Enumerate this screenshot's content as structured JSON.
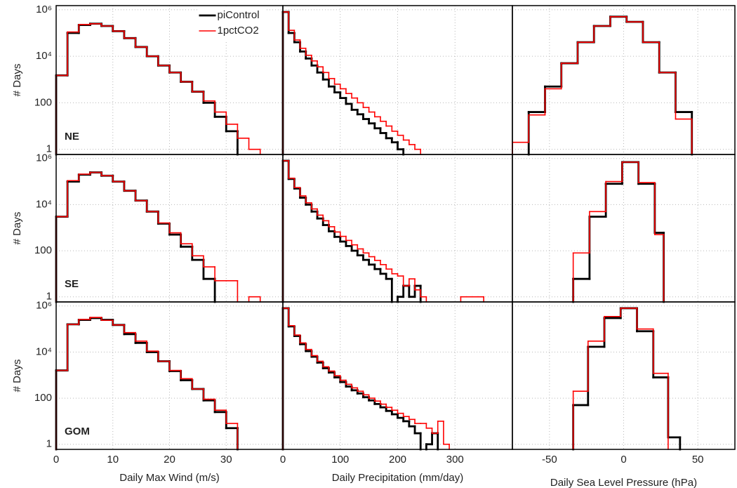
{
  "chart_data": [
    {
      "type": "histogram",
      "yscale": "log",
      "grid": true,
      "label": "NE",
      "ylabel": "# Days",
      "legend": "upper center",
      "xlim": [
        0,
        40
      ],
      "xticks": [
        0,
        10,
        20,
        30
      ],
      "ylim": [
        0.6,
        1500000
      ],
      "yticks": [
        1,
        100,
        {
          "value": 10000,
          "label": "10⁴"
        },
        {
          "value": 1000000,
          "label": "10⁶"
        }
      ],
      "series": [
        {
          "name": "piControl",
          "color": "#000000",
          "bins": [
            0,
            2,
            4,
            6,
            8,
            10,
            12,
            14,
            16,
            18,
            20,
            22,
            24,
            26,
            28,
            30,
            32
          ],
          "values": [
            1500,
            100000,
            220000,
            250000,
            200000,
            120000,
            60000,
            25000,
            10000,
            4000,
            2000,
            800,
            300,
            100,
            25,
            6
          ]
        },
        {
          "name": "1pctCO2",
          "color": "#ff0000",
          "bins": [
            0,
            2,
            4,
            6,
            8,
            10,
            12,
            14,
            16,
            18,
            20,
            22,
            24,
            26,
            28,
            30,
            32,
            34,
            36
          ],
          "values": [
            1500,
            110000,
            230000,
            250000,
            200000,
            120000,
            60000,
            25000,
            10000,
            4000,
            2000,
            800,
            300,
            120,
            40,
            12,
            3,
            1
          ]
        }
      ]
    },
    {
      "type": "histogram",
      "yscale": "log",
      "grid": true,
      "xlim": [
        0,
        400
      ],
      "xticks": [
        0,
        100,
        200,
        300
      ],
      "ylim": [
        0.6,
        1500000
      ],
      "yticks": [
        1,
        100,
        10000,
        1000000
      ],
      "series": [
        {
          "color": "#000000",
          "bins": [
            0,
            10,
            20,
            30,
            40,
            50,
            60,
            70,
            80,
            90,
            100,
            110,
            120,
            130,
            140,
            150,
            160,
            170,
            180,
            190,
            200,
            210
          ],
          "values": [
            800000,
            100000,
            40000,
            16000,
            8000,
            4000,
            2000,
            1000,
            500,
            280,
            160,
            90,
            50,
            32,
            20,
            13,
            8,
            5,
            3,
            2,
            1
          ]
        },
        {
          "color": "#ff0000",
          "bins": [
            0,
            10,
            20,
            30,
            40,
            50,
            60,
            70,
            80,
            90,
            100,
            110,
            120,
            130,
            140,
            150,
            160,
            170,
            180,
            190,
            200,
            210,
            220,
            230,
            240
          ],
          "values": [
            800000,
            130000,
            50000,
            22000,
            11000,
            6300,
            3500,
            2000,
            1100,
            630,
            400,
            250,
            160,
            100,
            63,
            40,
            25,
            16,
            10,
            6,
            4,
            2.5,
            1.6,
            1
          ]
        }
      ]
    },
    {
      "type": "histogram",
      "yscale": "log",
      "grid": true,
      "xlim": [
        -75,
        75
      ],
      "xticks": [
        -50,
        0,
        50
      ],
      "ylim": [
        0.6,
        1500000
      ],
      "yticks": [
        1,
        100,
        10000,
        1000000
      ],
      "series": [
        {
          "color": "#000000",
          "bins": [
            -64,
            -53,
            -42,
            -31,
            -20,
            -9,
            2,
            13,
            24,
            35,
            46
          ],
          "values": [
            40,
            500,
            5000,
            40000,
            200000,
            500000,
            300000,
            40000,
            2000,
            40
          ]
        },
        {
          "color": "#ff0000",
          "bins": [
            -75,
            -64,
            -53,
            -42,
            -31,
            -20,
            -9,
            2,
            13,
            24,
            35,
            46
          ],
          "values": [
            2,
            30,
            400,
            5000,
            40000,
            200000,
            500000,
            300000,
            40000,
            2000,
            20
          ]
        }
      ]
    },
    {
      "type": "histogram",
      "yscale": "log",
      "grid": true,
      "label": "SE",
      "ylabel": "# Days",
      "xlim": [
        0,
        40
      ],
      "xticks": [
        0,
        10,
        20,
        30
      ],
      "ylim": [
        0.6,
        1500000
      ],
      "yticks": [
        1,
        100,
        {
          "value": 10000,
          "label": "10⁴"
        },
        {
          "value": 1000000,
          "label": "10⁶"
        }
      ],
      "series": [
        {
          "color": "#000000",
          "bins": [
            0,
            2,
            4,
            6,
            8,
            10,
            12,
            14,
            16,
            18,
            20,
            22,
            24,
            26,
            28
          ],
          "values": [
            3000,
            100000,
            200000,
            250000,
            180000,
            100000,
            40000,
            15000,
            5000,
            1500,
            500,
            150,
            40,
            6
          ]
        },
        {
          "color": "#ff0000",
          "bins": [
            0,
            2,
            4,
            6,
            8,
            10,
            12,
            14,
            16,
            18,
            20,
            22,
            24,
            26,
            28,
            30,
            32,
            34,
            36
          ],
          "values": [
            3000,
            110000,
            210000,
            250000,
            180000,
            100000,
            40000,
            15000,
            5000,
            1600,
            600,
            200,
            60,
            20,
            5,
            5,
            null,
            1
          ]
        }
      ]
    },
    {
      "type": "histogram",
      "yscale": "log",
      "grid": true,
      "xlim": [
        0,
        400
      ],
      "xticks": [
        0,
        100,
        200,
        300
      ],
      "ylim": [
        0.6,
        1500000
      ],
      "yticks": [
        1,
        100,
        10000,
        1000000
      ],
      "series": [
        {
          "color": "#000000",
          "bins": [
            0,
            10,
            20,
            30,
            40,
            50,
            60,
            70,
            80,
            90,
            100,
            110,
            120,
            130,
            140,
            150,
            160,
            170,
            180,
            190,
            200,
            210,
            220,
            230,
            240
          ],
          "values": [
            800000,
            130000,
            50000,
            20000,
            10000,
            5000,
            2500,
            1300,
            700,
            400,
            250,
            160,
            100,
            63,
            40,
            25,
            16,
            10,
            6,
            null,
            1,
            3,
            1,
            3
          ]
        },
        {
          "color": "#ff0000",
          "bins": [
            0,
            10,
            20,
            30,
            40,
            50,
            60,
            70,
            80,
            90,
            100,
            110,
            120,
            130,
            140,
            150,
            160,
            170,
            180,
            190,
            200,
            210,
            220,
            230,
            240,
            250,
            260,
            270,
            280,
            290,
            300,
            310,
            320,
            330,
            340,
            350
          ],
          "values": [
            800000,
            140000,
            55000,
            24000,
            12000,
            6500,
            3500,
            2000,
            1100,
            650,
            420,
            280,
            180,
            120,
            80,
            55,
            38,
            25,
            16,
            10,
            8,
            3,
            6,
            2,
            1,
            null,
            null,
            null,
            null,
            null,
            null,
            1,
            1,
            1,
            1
          ]
        }
      ]
    },
    {
      "type": "histogram",
      "yscale": "log",
      "grid": true,
      "xlim": [
        -75,
        75
      ],
      "xticks": [
        -50,
        0,
        50
      ],
      "ylim": [
        0.6,
        1500000
      ],
      "yticks": [
        1,
        100,
        10000,
        1000000
      ],
      "series": [
        {
          "color": "#000000",
          "bins": [
            -34,
            -23,
            -12,
            -1,
            10,
            21,
            27
          ],
          "values": [
            6,
            3000,
            80000,
            700000,
            80000,
            600
          ]
        },
        {
          "color": "#ff0000",
          "bins": [
            -34,
            -23,
            -12,
            -1,
            10,
            21,
            27
          ],
          "values": [
            80,
            5000,
            100000,
            700000,
            90000,
            500
          ]
        }
      ]
    },
    {
      "type": "histogram",
      "yscale": "log",
      "grid": true,
      "label": "GOM",
      "ylabel": "# Days",
      "xlabel": "Daily Max Wind (m/s)",
      "xlim": [
        0,
        40
      ],
      "xticks": [
        0,
        10,
        20,
        30
      ],
      "ylim": [
        0.6,
        1500000
      ],
      "yticks": [
        1,
        100,
        {
          "value": 10000,
          "label": "10⁴"
        },
        {
          "value": 1000000,
          "label": "10⁶"
        }
      ],
      "series": [
        {
          "color": "#000000",
          "bins": [
            0,
            2,
            4,
            6,
            8,
            10,
            12,
            14,
            16,
            18,
            20,
            22,
            24,
            26,
            28,
            30,
            32
          ],
          "values": [
            1600,
            160000,
            250000,
            300000,
            250000,
            150000,
            60000,
            25000,
            10000,
            4000,
            1500,
            600,
            250,
            80,
            25,
            5
          ]
        },
        {
          "color": "#ff0000",
          "bins": [
            0,
            2,
            4,
            6,
            8,
            10,
            12,
            14,
            16,
            18,
            20,
            22,
            24,
            26,
            28,
            30,
            32
          ],
          "values": [
            1600,
            160000,
            260000,
            320000,
            240000,
            150000,
            70000,
            30000,
            11000,
            4000,
            1600,
            700,
            250,
            90,
            30,
            8
          ]
        }
      ]
    },
    {
      "type": "histogram",
      "yscale": "log",
      "grid": true,
      "xlabel": "Daily Precipitation (mm/day)",
      "xlim": [
        0,
        400
      ],
      "xticks": [
        0,
        100,
        200,
        300
      ],
      "ylim": [
        0.6,
        1500000
      ],
      "yticks": [
        1,
        100,
        10000,
        1000000
      ],
      "series": [
        {
          "color": "#000000",
          "bins": [
            0,
            10,
            20,
            30,
            40,
            50,
            60,
            70,
            80,
            90,
            100,
            110,
            120,
            130,
            140,
            150,
            160,
            170,
            180,
            190,
            200,
            210,
            220,
            230,
            240,
            250,
            260,
            270
          ],
          "values": [
            800000,
            130000,
            50000,
            22000,
            11000,
            6300,
            3500,
            2000,
            1300,
            800,
            500,
            320,
            220,
            160,
            110,
            80,
            56,
            40,
            28,
            20,
            14,
            10,
            6,
            3,
            null,
            1,
            3
          ]
        },
        {
          "color": "#ff0000",
          "bins": [
            0,
            10,
            20,
            30,
            40,
            50,
            60,
            70,
            80,
            90,
            100,
            110,
            120,
            130,
            140,
            150,
            160,
            170,
            180,
            190,
            200,
            210,
            220,
            230,
            240,
            250,
            260,
            270,
            280,
            290
          ],
          "values": [
            800000,
            140000,
            55000,
            25000,
            13000,
            7000,
            4000,
            2300,
            1500,
            950,
            600,
            400,
            280,
            200,
            140,
            100,
            75,
            55,
            40,
            30,
            22,
            16,
            12,
            8,
            8,
            5,
            3,
            10,
            1
          ]
        }
      ]
    },
    {
      "type": "histogram",
      "yscale": "log",
      "grid": true,
      "xlabel": "Daily Sea Level Pressure  (hPa)",
      "xlim": [
        -75,
        75
      ],
      "xticks": [
        -50,
        0,
        50
      ],
      "ylim": [
        0.6,
        1500000
      ],
      "yticks": [
        1,
        100,
        10000,
        1000000
      ],
      "series": [
        {
          "color": "#000000",
          "bins": [
            -34,
            -24,
            -13,
            -2,
            9,
            20,
            30,
            38
          ],
          "values": [
            50,
            17000,
            300000,
            800000,
            80000,
            800,
            2
          ]
        },
        {
          "color": "#ff0000",
          "bins": [
            -34,
            -24,
            -13,
            -2,
            9,
            20,
            30
          ],
          "values": [
            200,
            30000,
            350000,
            800000,
            100000,
            1200
          ]
        }
      ]
    }
  ]
}
